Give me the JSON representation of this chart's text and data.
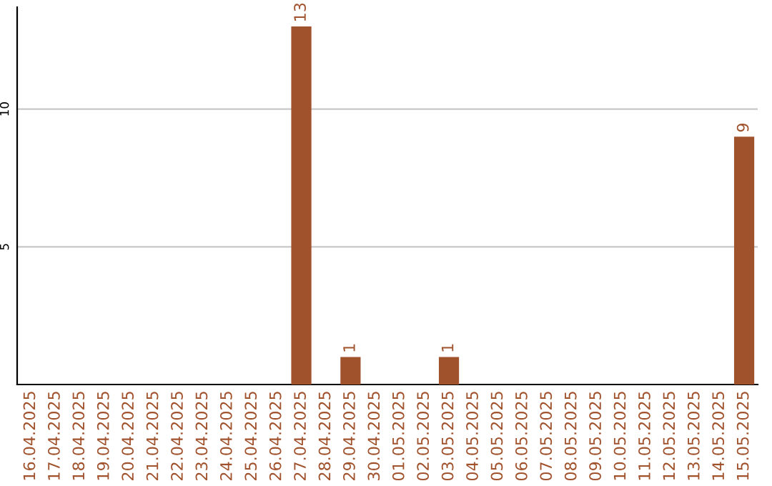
{
  "chart_data": {
    "type": "bar",
    "categories": [
      "16.04.2025",
      "17.04.2025",
      "18.04.2025",
      "19.04.2025",
      "20.04.2025",
      "21.04.2025",
      "22.04.2025",
      "23.04.2025",
      "24.04.2025",
      "25.04.2025",
      "26.04.2025",
      "27.04.2025",
      "28.04.2025",
      "29.04.2025",
      "30.04.2025",
      "01.05.2025",
      "02.05.2025",
      "03.05.2025",
      "04.05.2025",
      "05.05.2025",
      "06.05.2025",
      "07.05.2025",
      "08.05.2025",
      "09.05.2025",
      "10.05.2025",
      "11.05.2025",
      "12.05.2025",
      "13.05.2025",
      "14.05.2025",
      "15.05.2025"
    ],
    "values": [
      0,
      0,
      0,
      0,
      0,
      0,
      0,
      0,
      0,
      0,
      0,
      13,
      0,
      1,
      0,
      0,
      0,
      1,
      0,
      0,
      0,
      0,
      0,
      0,
      0,
      0,
      0,
      0,
      0,
      9
    ],
    "color": "#a0522d",
    "value_labels": [
      null,
      null,
      null,
      null,
      null,
      null,
      null,
      null,
      null,
      null,
      null,
      "13",
      null,
      "1",
      null,
      null,
      null,
      "1",
      null,
      null,
      null,
      null,
      null,
      null,
      null,
      null,
      null,
      null,
      null,
      "9"
    ],
    "ylim": [
      0,
      13.7
    ],
    "yticks": [
      5,
      10
    ],
    "grid": "y"
  }
}
